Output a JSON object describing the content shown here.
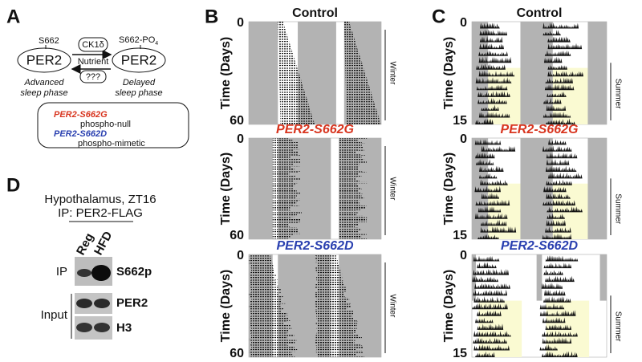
{
  "panel_a": {
    "label": "A",
    "site": "S662",
    "site_phospho": "S662-PO",
    "site_phospho_sub": "4",
    "left_protein": "PER2",
    "right_protein": "PER2",
    "kinase": "CK1δ",
    "nutrient": "Nutrient",
    "unknown": "???",
    "left_phenotype": [
      "Advanced",
      "sleep phase"
    ],
    "right_phenotype": [
      "Delayed",
      "sleep phase"
    ],
    "legend": [
      {
        "name": "PER2-S662G",
        "description": "phospho-null"
      },
      {
        "name": "PER2-S662D",
        "description": "phospho-mimetic"
      }
    ]
  },
  "panel_d": {
    "label": "D",
    "condition": "Hypothalamus, ZT16",
    "ip_prefix": "IP:",
    "ip_target": "PER2-FLAG",
    "lanes": [
      "Reg",
      "HFD"
    ],
    "groups": [
      "IP",
      "Input"
    ],
    "blots": [
      "S662p",
      "PER2",
      "H3"
    ]
  },
  "panel_b": {
    "label": "B",
    "y_label": "Time (Days)",
    "plots": [
      {
        "title": "Control",
        "ticks": [
          "0",
          "60"
        ],
        "season": "Winter"
      },
      {
        "title": "PER2-S662G",
        "ticks": [
          "0",
          "60"
        ],
        "season": "Winter"
      },
      {
        "title": "PER2-S662D",
        "ticks": [
          "0",
          "60"
        ],
        "season": "Winter"
      }
    ]
  },
  "panel_c": {
    "label": "C",
    "y_label": "Time (Days)",
    "plots": [
      {
        "title": "Control",
        "ticks": [
          "0",
          "15"
        ],
        "season": "Summer"
      },
      {
        "title": "PER2-S662G",
        "ticks": [
          "0",
          "15"
        ],
        "season": "Summer"
      },
      {
        "title": "PER2-S662D",
        "ticks": [
          "0",
          "15"
        ],
        "season": "Summer"
      }
    ]
  }
}
